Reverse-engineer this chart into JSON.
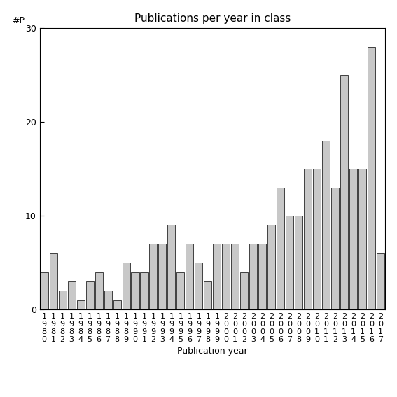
{
  "years": [
    "1980",
    "1981",
    "1982",
    "1983",
    "1984",
    "1985",
    "1986",
    "1987",
    "1988",
    "1989",
    "1990",
    "1991",
    "1992",
    "1993",
    "1994",
    "1995",
    "1996",
    "1997",
    "1998",
    "1999",
    "2000",
    "2001",
    "2002",
    "2003",
    "2004",
    "2005",
    "2006",
    "2007",
    "2008",
    "2009",
    "2010",
    "2011",
    "2012",
    "2013",
    "2014",
    "2015",
    "2016",
    "2017"
  ],
  "values": [
    4,
    6,
    2,
    3,
    1,
    3,
    4,
    2,
    1,
    5,
    4,
    4,
    7,
    7,
    9,
    4,
    7,
    5,
    3,
    7,
    7,
    7,
    4,
    7,
    7,
    9,
    13,
    10,
    10,
    15,
    15,
    18,
    13,
    25,
    15,
    15,
    28,
    6
  ],
  "title": "Publications per year in class",
  "xlabel": "Publication year",
  "ylabel_text": "#P",
  "ylim": [
    0,
    30
  ],
  "yticks": [
    0,
    10,
    20,
    30
  ],
  "bar_color": "#c8c8c8",
  "bar_edge_color": "#000000",
  "background_color": "#ffffff",
  "title_fontsize": 11,
  "tick_fontsize": 8,
  "xlabel_fontsize": 9
}
